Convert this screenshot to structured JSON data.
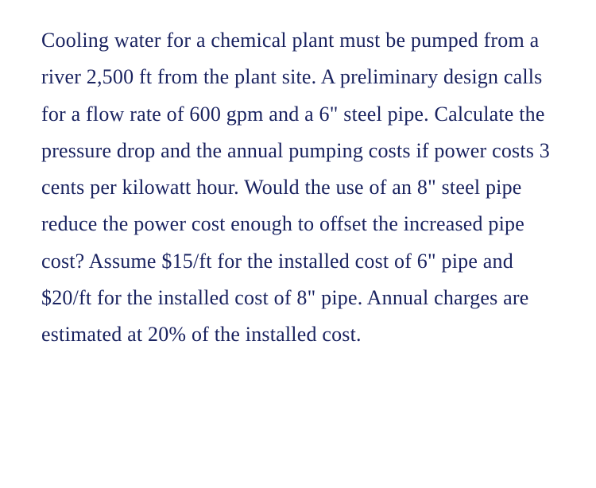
{
  "problem": {
    "text": "Cooling water for a chemical plant must be pumped from a river 2,500 ft from the plant site. A preliminary design calls for a flow rate of 600 gpm and a 6\" steel pipe. Calculate the pressure drop and the annual pumping costs if power costs 3 cents per kilowatt hour. Would the use of an 8\" steel pipe reduce the power cost enough to offset the increased pipe cost? Assume $15/ft for the installed cost of 6\" pipe and $20/ft for the installed cost of 8\" pipe. Annual charges are estimated at 20% of the installed cost.",
    "text_color": "#1a2360",
    "font_family": "Georgia, serif",
    "font_size": 26,
    "line_height": 1.78,
    "background_color": "#ffffff"
  }
}
